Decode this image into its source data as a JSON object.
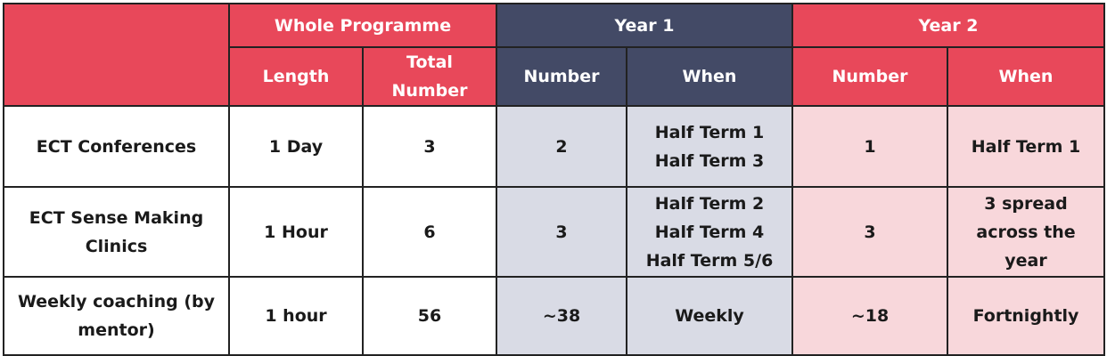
{
  "header": {
    "groups": {
      "whole_programme": "Whole Programme",
      "year1": "Year 1",
      "year2": "Year 2"
    },
    "sub": {
      "length": "Length",
      "total_number": [
        "Total",
        "Number"
      ],
      "y1_number": "Number",
      "y1_when": "When",
      "y2_number": "Number",
      "y2_when": "When"
    }
  },
  "rows": [
    {
      "name": [
        "ECT Conferences"
      ],
      "length": "1 Day",
      "total": "3",
      "y1_number": "2",
      "y1_when": [
        "Half Term 1",
        "Half Term 3"
      ],
      "y2_number": "1",
      "y2_when": [
        "Half Term 1"
      ]
    },
    {
      "name": [
        "ECT Sense Making",
        "Clinics"
      ],
      "length": "1 Hour",
      "total": "6",
      "y1_number": "3",
      "y1_when": [
        "Half Term 2",
        "Half Term 4",
        "Half Term 5/6"
      ],
      "y2_number": "3",
      "y2_when": [
        "3 spread",
        "across the",
        "year"
      ]
    },
    {
      "name": [
        "Weekly coaching (by",
        "mentor)"
      ],
      "length": "1 hour",
      "total": "56",
      "y1_number": "~38",
      "y1_when": [
        "Weekly"
      ],
      "y2_number": "~18",
      "y2_when": [
        "Fortnightly"
      ]
    }
  ],
  "colors": {
    "header_red": "#e8485a",
    "header_navy": "#434a66",
    "year1_body": "#d9dbe5",
    "year2_body": "#f8d7db"
  }
}
